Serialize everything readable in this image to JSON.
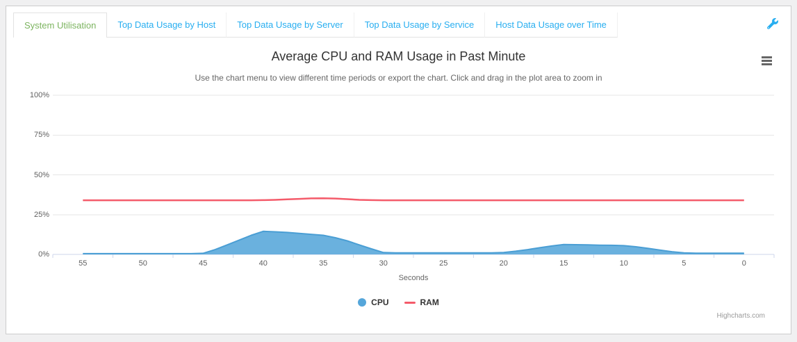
{
  "tabs": {
    "items": [
      {
        "label": "System Utilisation",
        "active": true
      },
      {
        "label": "Top Data Usage by Host",
        "active": false
      },
      {
        "label": "Top Data Usage by Server",
        "active": false
      },
      {
        "label": "Top Data Usage by Service",
        "active": false
      },
      {
        "label": "Host Data Usage over Time",
        "active": false
      }
    ]
  },
  "toolbar": {
    "settings_icon": "wrench",
    "chart_menu_icon": "hamburger"
  },
  "colors": {
    "tab_active": "#7cb45f",
    "tab_inactive": "#28aef0",
    "wrench": "#28aef0",
    "grid": "#e6e6e6",
    "axis": "#ccd6eb",
    "cpu": "#55a6da",
    "cpu_stroke": "#4a9ed4",
    "ram": "#f45b6a"
  },
  "chart_data": {
    "type": "area",
    "title": "Average CPU and RAM Usage in Past Minute",
    "subtitle": "Use the chart menu to view different time periods or export the chart. Click and drag in the plot area to zoom in",
    "xlabel": "Seconds",
    "ylabel": "",
    "x_reversed": true,
    "xlim": [
      57.5,
      -2.5
    ],
    "ylim": [
      0,
      100
    ],
    "grid": true,
    "legend_position": "bottom",
    "credits": "Highcharts.com",
    "y_ticks": [
      0,
      25,
      50,
      75,
      100
    ],
    "y_tick_suffix": "%",
    "x_tick_labels": [
      55,
      50,
      45,
      40,
      35,
      30,
      25,
      20,
      15,
      10,
      5,
      0
    ],
    "x": [
      55,
      54,
      53,
      52,
      51,
      50,
      49,
      48,
      47,
      46,
      45,
      44,
      43,
      42,
      41,
      40,
      39,
      38,
      37,
      36,
      35,
      34,
      33,
      32,
      31,
      30,
      29,
      28,
      27,
      26,
      25,
      24,
      23,
      22,
      21,
      20,
      19,
      18,
      17,
      16,
      15,
      14,
      13,
      12,
      11,
      10,
      9,
      8,
      7,
      6,
      5,
      4,
      3,
      2,
      1,
      0
    ],
    "series": [
      {
        "name": "CPU",
        "type": "area",
        "values": [
          0.5,
          0.5,
          0.5,
          0.5,
          0.5,
          0.5,
          0.5,
          0.5,
          0.5,
          0.5,
          0.7,
          3,
          6,
          9,
          12,
          14.5,
          14.2,
          13.8,
          13.2,
          12.6,
          12,
          10.5,
          8.5,
          6,
          3.5,
          1.2,
          1,
          1,
          1,
          1,
          1,
          1,
          1,
          1,
          1,
          1.2,
          2,
          3,
          4.2,
          5.3,
          6.2,
          6.1,
          6,
          5.8,
          5.7,
          5.5,
          4.8,
          3.8,
          2.7,
          1.7,
          1,
          0.8,
          0.8,
          0.8,
          0.8,
          0.8
        ]
      },
      {
        "name": "RAM",
        "type": "line",
        "values": [
          34,
          34,
          34,
          34,
          34,
          34,
          34,
          34,
          34,
          34,
          34,
          34,
          34,
          34,
          34,
          34.1,
          34.3,
          34.6,
          34.9,
          35.2,
          35.3,
          35.1,
          34.7,
          34.3,
          34.1,
          34,
          34,
          34,
          34,
          34,
          34,
          34,
          34,
          34,
          34,
          34,
          34,
          34,
          34,
          34,
          34,
          34,
          34,
          34,
          34,
          34,
          34,
          34,
          34,
          34,
          34,
          34,
          34,
          34,
          34,
          34
        ]
      }
    ]
  }
}
